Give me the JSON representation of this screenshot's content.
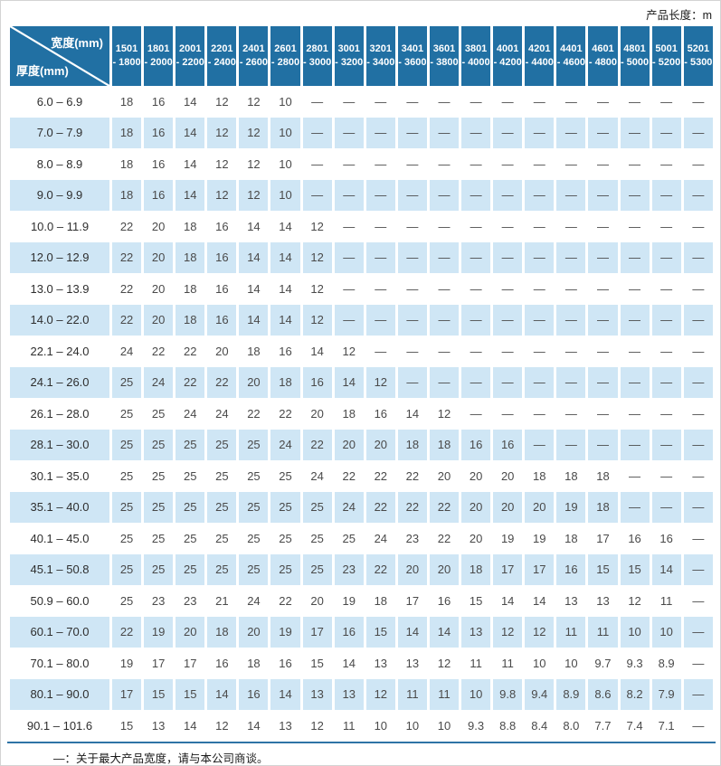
{
  "page": {
    "unit_label": "产品长度：m",
    "footnote": "—：关于最大产品宽度，请与本公司商谈。"
  },
  "colors": {
    "header_bg": "#2170a3",
    "stripe_bg": "#cfe6f5",
    "bottom_line": "#2f74a6"
  },
  "table": {
    "corner": {
      "width_label": "宽度(mm)",
      "thickness_label": "厚度(mm)"
    },
    "columns": [
      {
        "line1": "1501",
        "line2": "- 1800"
      },
      {
        "line1": "1801",
        "line2": "- 2000"
      },
      {
        "line1": "2001",
        "line2": "- 2200"
      },
      {
        "line1": "2201",
        "line2": "- 2400"
      },
      {
        "line1": "2401",
        "line2": "- 2600"
      },
      {
        "line1": "2601",
        "line2": "- 2800"
      },
      {
        "line1": "2801",
        "line2": "- 3000"
      },
      {
        "line1": "3001",
        "line2": "- 3200"
      },
      {
        "line1": "3201",
        "line2": "- 3400"
      },
      {
        "line1": "3401",
        "line2": "- 3600"
      },
      {
        "line1": "3601",
        "line2": "- 3800"
      },
      {
        "line1": "3801",
        "line2": "- 4000"
      },
      {
        "line1": "4001",
        "line2": "- 4200"
      },
      {
        "line1": "4201",
        "line2": "- 4400"
      },
      {
        "line1": "4401",
        "line2": "- 4600"
      },
      {
        "line1": "4601",
        "line2": "- 4800"
      },
      {
        "line1": "4801",
        "line2": "- 5000"
      },
      {
        "line1": "5001",
        "line2": "- 5200"
      },
      {
        "line1": "5201",
        "line2": "- 5300"
      }
    ],
    "rows": [
      {
        "label": "6.0 –  6.9",
        "values": [
          "18",
          "16",
          "14",
          "12",
          "12",
          "10",
          "—",
          "—",
          "—",
          "—",
          "—",
          "—",
          "—",
          "—",
          "—",
          "—",
          "—",
          "—",
          "—"
        ]
      },
      {
        "label": "7.0 –  7.9",
        "values": [
          "18",
          "16",
          "14",
          "12",
          "12",
          "10",
          "—",
          "—",
          "—",
          "—",
          "—",
          "—",
          "—",
          "—",
          "—",
          "—",
          "—",
          "—",
          "—"
        ]
      },
      {
        "label": "8.0 –  8.9",
        "values": [
          "18",
          "16",
          "14",
          "12",
          "12",
          "10",
          "—",
          "—",
          "—",
          "—",
          "—",
          "—",
          "—",
          "—",
          "—",
          "—",
          "—",
          "—",
          "—"
        ]
      },
      {
        "label": "9.0 –  9.9",
        "values": [
          "18",
          "16",
          "14",
          "12",
          "12",
          "10",
          "—",
          "—",
          "—",
          "—",
          "—",
          "—",
          "—",
          "—",
          "—",
          "—",
          "—",
          "—",
          "—"
        ]
      },
      {
        "label": "10.0 –  11.9",
        "values": [
          "22",
          "20",
          "18",
          "16",
          "14",
          "14",
          "12",
          "—",
          "—",
          "—",
          "—",
          "—",
          "—",
          "—",
          "—",
          "—",
          "—",
          "—",
          "—"
        ]
      },
      {
        "label": "12.0 –  12.9",
        "values": [
          "22",
          "20",
          "18",
          "16",
          "14",
          "14",
          "12",
          "—",
          "—",
          "—",
          "—",
          "—",
          "—",
          "—",
          "—",
          "—",
          "—",
          "—",
          "—"
        ]
      },
      {
        "label": "13.0 –  13.9",
        "values": [
          "22",
          "20",
          "18",
          "16",
          "14",
          "14",
          "12",
          "—",
          "—",
          "—",
          "—",
          "—",
          "—",
          "—",
          "—",
          "—",
          "—",
          "—",
          "—"
        ]
      },
      {
        "label": "14.0 –  22.0",
        "values": [
          "22",
          "20",
          "18",
          "16",
          "14",
          "14",
          "12",
          "—",
          "—",
          "—",
          "—",
          "—",
          "—",
          "—",
          "—",
          "—",
          "—",
          "—",
          "—"
        ]
      },
      {
        "label": "22.1 –  24.0",
        "values": [
          "24",
          "22",
          "22",
          "20",
          "18",
          "16",
          "14",
          "12",
          "—",
          "—",
          "—",
          "—",
          "—",
          "—",
          "—",
          "—",
          "—",
          "—",
          "—"
        ]
      },
      {
        "label": "24.1 –  26.0",
        "values": [
          "25",
          "24",
          "22",
          "22",
          "20",
          "18",
          "16",
          "14",
          "12",
          "—",
          "—",
          "—",
          "—",
          "—",
          "—",
          "—",
          "—",
          "—",
          "—"
        ]
      },
      {
        "label": "26.1 –  28.0",
        "values": [
          "25",
          "25",
          "24",
          "24",
          "22",
          "22",
          "20",
          "18",
          "16",
          "14",
          "12",
          "—",
          "—",
          "—",
          "—",
          "—",
          "—",
          "—",
          "—"
        ]
      },
      {
        "label": "28.1 –  30.0",
        "values": [
          "25",
          "25",
          "25",
          "25",
          "25",
          "24",
          "22",
          "20",
          "20",
          "18",
          "18",
          "16",
          "16",
          "—",
          "—",
          "—",
          "—",
          "—",
          "—"
        ]
      },
      {
        "label": "30.1 –  35.0",
        "values": [
          "25",
          "25",
          "25",
          "25",
          "25",
          "25",
          "24",
          "22",
          "22",
          "22",
          "20",
          "20",
          "20",
          "18",
          "18",
          "18",
          "—",
          "—",
          "—"
        ]
      },
      {
        "label": "35.1 –  40.0",
        "values": [
          "25",
          "25",
          "25",
          "25",
          "25",
          "25",
          "25",
          "24",
          "22",
          "22",
          "22",
          "20",
          "20",
          "20",
          "19",
          "18",
          "—",
          "—",
          "—"
        ]
      },
      {
        "label": "40.1 –  45.0",
        "values": [
          "25",
          "25",
          "25",
          "25",
          "25",
          "25",
          "25",
          "25",
          "24",
          "23",
          "22",
          "20",
          "19",
          "19",
          "18",
          "17",
          "16",
          "16",
          "—"
        ]
      },
      {
        "label": "45.1 –  50.8",
        "values": [
          "25",
          "25",
          "25",
          "25",
          "25",
          "25",
          "25",
          "23",
          "22",
          "20",
          "20",
          "18",
          "17",
          "17",
          "16",
          "15",
          "15",
          "14",
          "—"
        ]
      },
      {
        "label": "50.9 –  60.0",
        "values": [
          "25",
          "23",
          "23",
          "21",
          "24",
          "22",
          "20",
          "19",
          "18",
          "17",
          "16",
          "15",
          "14",
          "14",
          "13",
          "13",
          "12",
          "11",
          "—"
        ]
      },
      {
        "label": "60.1 –  70.0",
        "values": [
          "22",
          "19",
          "20",
          "18",
          "20",
          "19",
          "17",
          "16",
          "15",
          "14",
          "14",
          "13",
          "12",
          "12",
          "11",
          "11",
          "10",
          "10",
          "—"
        ]
      },
      {
        "label": "70.1 –  80.0",
        "values": [
          "19",
          "17",
          "17",
          "16",
          "18",
          "16",
          "15",
          "14",
          "13",
          "13",
          "12",
          "11",
          "11",
          "10",
          "10",
          "9.7",
          "9.3",
          "8.9",
          "—"
        ]
      },
      {
        "label": "80.1 –  90.0",
        "values": [
          "17",
          "15",
          "15",
          "14",
          "16",
          "14",
          "13",
          "13",
          "12",
          "11",
          "11",
          "10",
          "9.8",
          "9.4",
          "8.9",
          "8.6",
          "8.2",
          "7.9",
          "—"
        ]
      },
      {
        "label": "90.1 – 101.6",
        "values": [
          "15",
          "13",
          "14",
          "12",
          "14",
          "13",
          "12",
          "11",
          "10",
          "10",
          "10",
          "9.3",
          "8.8",
          "8.4",
          "8.0",
          "7.7",
          "7.4",
          "7.1",
          "—"
        ]
      }
    ]
  }
}
